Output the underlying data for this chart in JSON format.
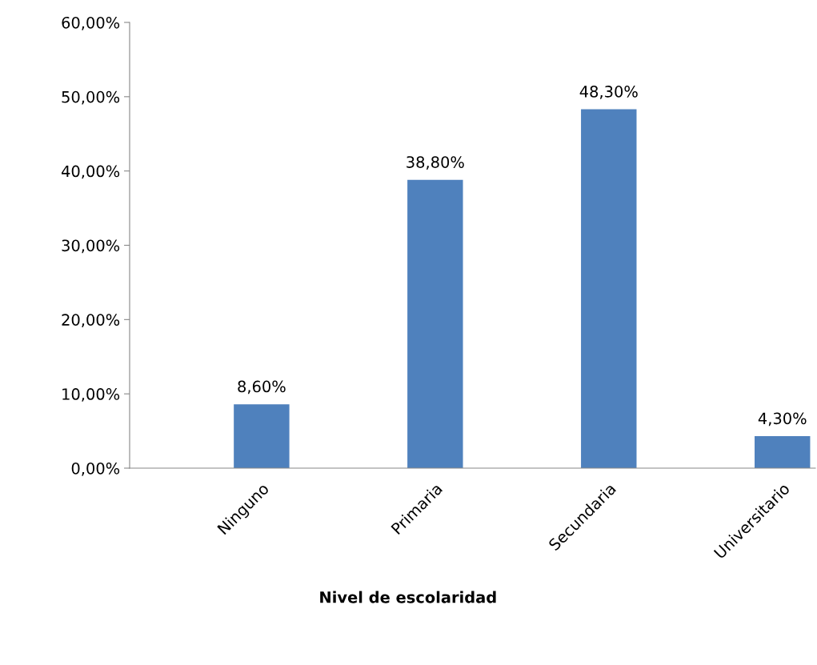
{
  "chart_data": {
    "type": "bar",
    "xlabel": "Nivel de escolaridad",
    "categories": [
      "Ninguno",
      "Primaria",
      "Secundaria",
      "Universitario"
    ],
    "values": [
      8.6,
      38.8,
      48.3,
      4.3
    ],
    "value_labels": [
      "8,60%",
      "38,80%",
      "48,30%",
      "4,30%"
    ],
    "color": "#4f81bd",
    "ylim": [
      0,
      60
    ],
    "yticks": [
      {
        "value": 0,
        "label": "0,00%"
      },
      {
        "value": 10,
        "label": "10,00%"
      },
      {
        "value": 20,
        "label": "20,00%"
      },
      {
        "value": 30,
        "label": "30,00%"
      },
      {
        "value": 40,
        "label": "40,00%"
      },
      {
        "value": 50,
        "label": "50,00%"
      },
      {
        "value": 60,
        "label": "60,00%"
      }
    ],
    "grid": false,
    "legend": false
  }
}
